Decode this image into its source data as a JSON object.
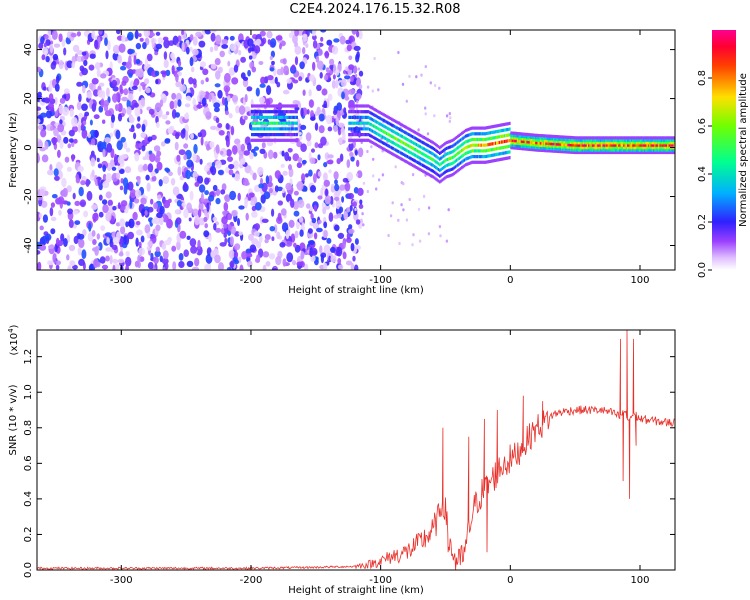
{
  "title": "C2E4.2024.176.15.32.R08",
  "colors": {
    "background": "#ffffff",
    "axis": "#000000",
    "snr_line": "#e8302a",
    "colormap": [
      "#ffffff",
      "#e8c8ff",
      "#b070ff",
      "#7a10ff",
      "#3030ff",
      "#00c0ff",
      "#00ff80",
      "#a0ff00",
      "#ffe000",
      "#ff6000",
      "#ff0000",
      "#ff0080"
    ]
  },
  "chart_data": [
    {
      "type": "heatmap",
      "panel": "spectrogram",
      "xlabel": "Height of straight line (km)",
      "ylabel": "Frequency (Hz)",
      "xlim": [
        -365,
        127
      ],
      "ylim": [
        -50,
        48
      ],
      "x_ticks": [
        -300,
        -200,
        -100,
        0,
        100
      ],
      "x_tick_labels": [
        "-300",
        "-200",
        "-100",
        "0",
        "100"
      ],
      "y_ticks": [
        -40,
        -20,
        0,
        20,
        40
      ],
      "y_tick_labels": [
        "-40",
        "-20",
        "0",
        "20",
        "40"
      ],
      "colorbar": {
        "label": "Normalized spectral amplitude",
        "range": [
          0,
          1
        ],
        "ticks": [
          0.0,
          0.2,
          0.4,
          0.6,
          0.8
        ],
        "tick_labels": [
          "0.0",
          "0.2",
          "0.4",
          "0.6",
          "0.8"
        ]
      },
      "noise_region_x": [
        -365,
        -120
      ],
      "ridge": {
        "x": [
          -195,
          -180,
          -170,
          -120,
          -110,
          -100,
          -90,
          -80,
          -70,
          -60,
          -55,
          -50,
          -45,
          -40,
          -35,
          -30,
          -20,
          -10,
          0,
          20,
          50,
          80,
          110,
          127
        ],
        "y": [
          10,
          10,
          10,
          10,
          10,
          7,
          4,
          1,
          -2,
          -5,
          -7,
          -5,
          -4,
          -2,
          0,
          1,
          1,
          2,
          3,
          2,
          1,
          1,
          1,
          1
        ],
        "amplitude": [
          0.5,
          0.5,
          0.4,
          0.35,
          0.45,
          0.55,
          0.6,
          0.6,
          0.55,
          0.5,
          0.45,
          0.55,
          0.6,
          0.65,
          0.7,
          0.75,
          0.8,
          0.85,
          0.9,
          0.9,
          0.95,
          0.95,
          0.95,
          0.95
        ]
      }
    },
    {
      "type": "line",
      "panel": "snr",
      "xlabel": "Height of straight line (km)",
      "ylabel": "SNR (10 * v/v)",
      "y_multiplier_label": "(x10",
      "y_multiplier_exponent": "4",
      "y_multiplier_close": ")",
      "xlim": [
        -365,
        127
      ],
      "ylim": [
        0,
        1.35
      ],
      "x_ticks": [
        -300,
        -200,
        -100,
        0,
        100
      ],
      "x_tick_labels": [
        "-300",
        "-200",
        "-100",
        "0",
        "100"
      ],
      "y_ticks": [
        0.0,
        0.2,
        0.4,
        0.6,
        0.8,
        1.0,
        1.2
      ],
      "y_tick_labels": [
        "0.0",
        "0.2",
        "0.4",
        "0.6",
        "0.8",
        "1.0",
        "1.2"
      ],
      "series": [
        {
          "values_x": [
            -365,
            -300,
            -200,
            -150,
            -120,
            -110,
            -100,
            -90,
            -80,
            -70,
            -60,
            -55,
            -52,
            -50,
            -48,
            -45,
            -40,
            -35,
            -30,
            -25,
            -20,
            -15,
            -10,
            -5,
            0,
            5,
            10,
            15,
            20,
            25,
            30,
            35,
            40,
            50,
            60,
            70,
            80,
            85,
            88,
            90,
            92,
            95,
            100,
            110,
            120,
            127
          ],
          "values_y": [
            0.01,
            0.01,
            0.01,
            0.015,
            0.02,
            0.03,
            0.05,
            0.08,
            0.1,
            0.15,
            0.22,
            0.3,
            0.4,
            0.32,
            0.2,
            0.1,
            0.03,
            0.1,
            0.3,
            0.4,
            0.45,
            0.5,
            0.55,
            0.6,
            0.62,
            0.65,
            0.7,
            0.75,
            0.8,
            0.82,
            0.86,
            0.88,
            0.89,
            0.9,
            0.9,
            0.9,
            0.88,
            0.86,
            0.9,
            0.85,
            0.85,
            0.88,
            0.85,
            0.84,
            0.83,
            0.83
          ],
          "spikes": [
            {
              "x": -52,
              "y": 0.8
            },
            {
              "x": -48,
              "y": 0.1
            },
            {
              "x": -32,
              "y": 0.75
            },
            {
              "x": -20,
              "y": 0.85
            },
            {
              "x": -18,
              "y": 0.1
            },
            {
              "x": -10,
              "y": 0.9
            },
            {
              "x": 10,
              "y": 0.98
            },
            {
              "x": 25,
              "y": 0.95
            },
            {
              "x": 85,
              "y": 1.3
            },
            {
              "x": 87,
              "y": 0.5
            },
            {
              "x": 90,
              "y": 1.35
            },
            {
              "x": 92,
              "y": 0.4
            },
            {
              "x": 95,
              "y": 1.3
            },
            {
              "x": 97,
              "y": 0.7
            }
          ]
        }
      ]
    }
  ]
}
